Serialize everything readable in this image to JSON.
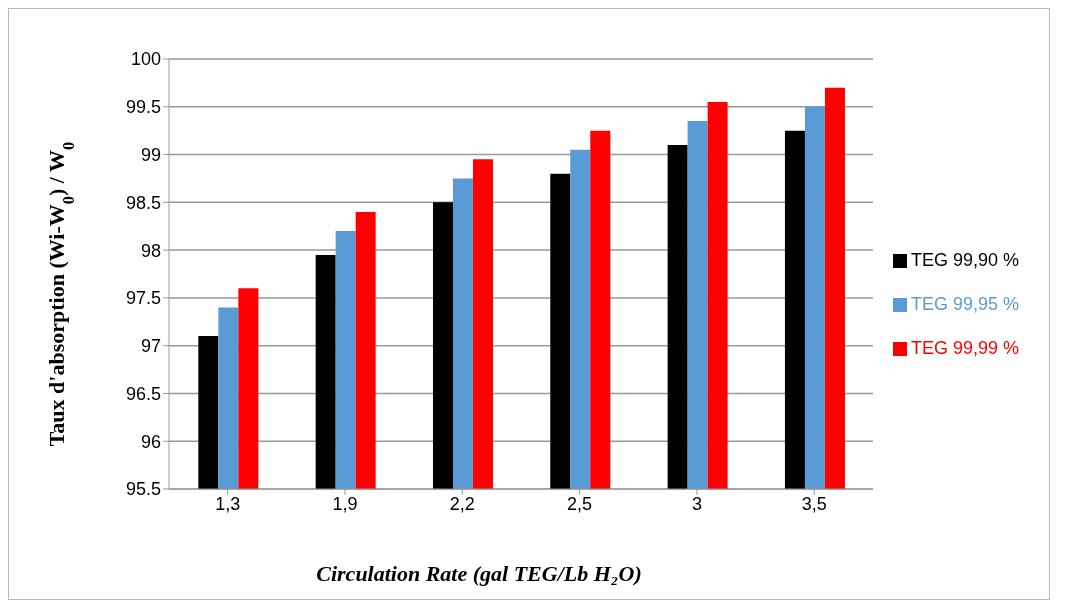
{
  "chart_data": {
    "type": "bar",
    "xlabel": "Circulation Rate (gal TEG/Lb H₂O)",
    "ylabel": "Taux d'absorption  (Wi-W$_{0}$) / W$_{0}$",
    "categories": [
      "1,3",
      "1,9",
      "2,2",
      "2,5",
      "3",
      "3,5"
    ],
    "series": [
      {
        "name": "TEG 99,90 %",
        "color": "#000000",
        "values": [
          97.1,
          97.95,
          98.5,
          98.8,
          99.1,
          99.25
        ]
      },
      {
        "name": "TEG 99,95 %",
        "color": "#5b9bd5",
        "values": [
          97.4,
          98.2,
          98.75,
          99.05,
          99.35,
          99.5
        ]
      },
      {
        "name": "TEG 99,99 %",
        "color": "#ff0000",
        "values": [
          97.6,
          98.4,
          98.95,
          99.25,
          99.55,
          99.7
        ]
      }
    ],
    "ylim": [
      95.5,
      100
    ],
    "yticks": [
      95.5,
      96,
      96.5,
      97,
      97.5,
      98,
      98.5,
      99,
      99.5,
      100
    ],
    "grid": "y",
    "legend": "right"
  }
}
